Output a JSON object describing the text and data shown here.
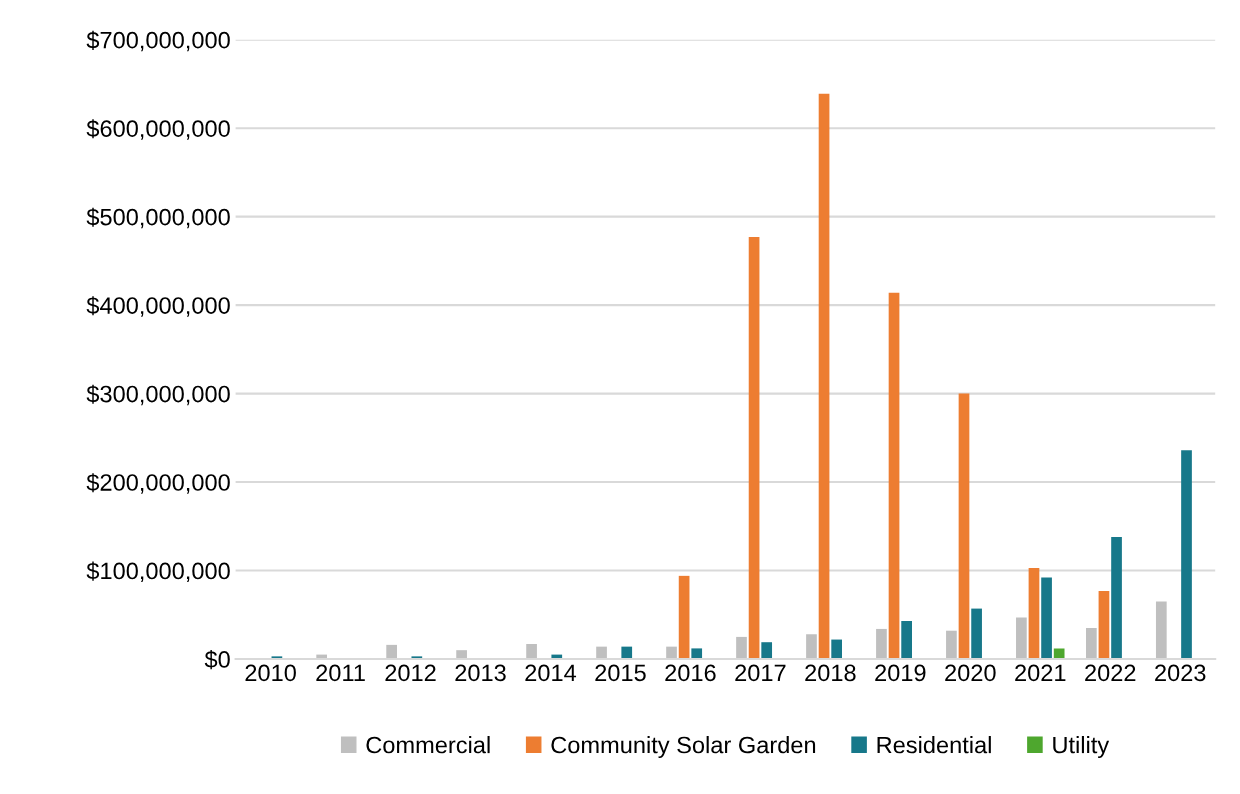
{
  "chart_data": {
    "type": "bar",
    "categories": [
      "2010",
      "2011",
      "2012",
      "2013",
      "2014",
      "2015",
      "2016",
      "2017",
      "2018",
      "2019",
      "2020",
      "2021",
      "2022",
      "2023"
    ],
    "series": [
      {
        "name": "Commercial",
        "color": "#bfbfbf",
        "values": [
          null,
          5000000,
          16000000,
          10000000,
          17000000,
          14000000,
          14000000,
          25000000,
          28000000,
          34000000,
          32000000,
          47000000,
          35000000,
          65000000
        ]
      },
      {
        "name": "Community Solar Garden",
        "color": "#ed7d31",
        "values": [
          null,
          null,
          null,
          null,
          null,
          null,
          94000000,
          477000000,
          639000000,
          414000000,
          300000000,
          103000000,
          77000000,
          null
        ]
      },
      {
        "name": "Residential",
        "color": "#17788a",
        "values": [
          3000000,
          null,
          3000000,
          null,
          5000000,
          14000000,
          12000000,
          19000000,
          22000000,
          43000000,
          57000000,
          92000000,
          138000000,
          236000000
        ]
      },
      {
        "name": "Utility",
        "color": "#4ea72e",
        "values": [
          null,
          null,
          null,
          null,
          null,
          null,
          null,
          null,
          null,
          null,
          null,
          12000000,
          null,
          null
        ]
      }
    ],
    "ylim": [
      0,
      700000000
    ],
    "yticks": [
      {
        "value": 0,
        "label": "$0"
      },
      {
        "value": 100000000,
        "label": "$100,000,000"
      },
      {
        "value": 200000000,
        "label": "$200,000,000"
      },
      {
        "value": 300000000,
        "label": "$300,000,000"
      },
      {
        "value": 400000000,
        "label": "$400,000,000"
      },
      {
        "value": 500000000,
        "label": "$500,000,000"
      },
      {
        "value": 600000000,
        "label": "$600,000,000"
      },
      {
        "value": 700000000,
        "label": "$700,000,000"
      }
    ],
    "grid": "y",
    "legend": "bottom"
  }
}
